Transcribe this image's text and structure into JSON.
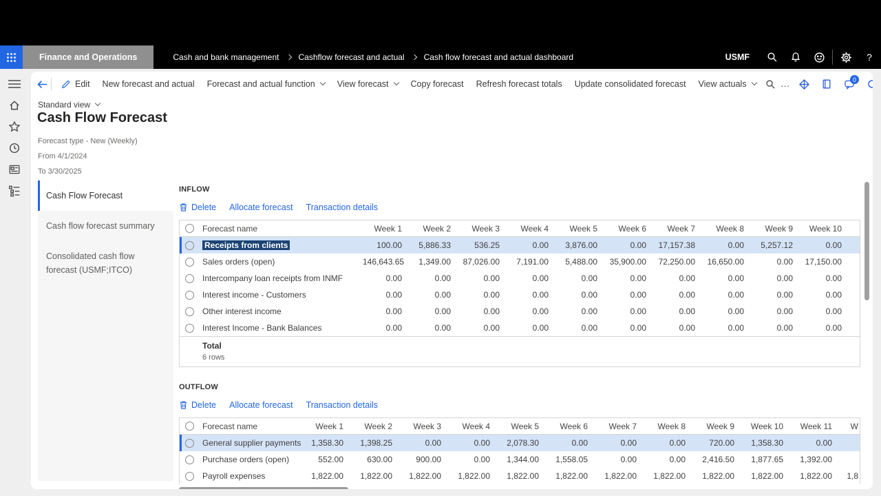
{
  "colors": {
    "accent": "#2266E3",
    "row_highlight": "#d5e3f7",
    "selection_text_bg": "#1b4474",
    "header_bg": "#000000"
  },
  "app_bar": {
    "app_name": "Finance and Operations",
    "breadcrumb": [
      "Cash and bank management",
      "Cashflow forecast and actual",
      "Cash flow forecast and actual dashboard"
    ],
    "company": "USMF",
    "help_label": "?"
  },
  "action_pane": {
    "edit_label": "Edit",
    "items": [
      {
        "label": "New forecast and actual",
        "dropdown": false
      },
      {
        "label": "Forecast and actual function",
        "dropdown": true
      },
      {
        "label": "View forecast",
        "dropdown": true
      },
      {
        "label": "Copy forecast",
        "dropdown": false
      },
      {
        "label": "Refresh forecast totals",
        "dropdown": false
      },
      {
        "label": "Update consolidated forecast",
        "dropdown": false
      },
      {
        "label": "View actuals",
        "dropdown": true
      }
    ],
    "more_label": "...",
    "chat_badge": "0"
  },
  "page": {
    "view_label": "Standard view",
    "title": "Cash Flow Forecast",
    "meta": [
      "Forecast type - New (Weekly)",
      "From 4/1/2024",
      "To 3/30/2025"
    ]
  },
  "sidebar_tabs": [
    {
      "label": "Cash Flow Forecast",
      "selected": true
    },
    {
      "label": "Cash flow forecast summary",
      "selected": false
    },
    {
      "label": "Consolidated cash flow forecast (USMF;ITCO)",
      "selected": false
    }
  ],
  "sections": {
    "inflow": {
      "title": "INFLOW",
      "actions": [
        "Delete",
        "Allocate forecast",
        "Transaction details"
      ],
      "columns": [
        "Forecast name",
        "Week 1",
        "Week 2",
        "Week 3",
        "Week 4",
        "Week 5",
        "Week 6",
        "Week 7",
        "Week 8",
        "Week 9",
        "Week 10"
      ],
      "rows": [
        {
          "name": "Receipts from clients",
          "selected": true,
          "values": [
            "100.00",
            "5,886.33",
            "536.25",
            "0.00",
            "3,876.00",
            "0.00",
            "17,157.38",
            "0.00",
            "5,257.12",
            "0.00"
          ]
        },
        {
          "name": "Sales orders (open)",
          "selected": false,
          "values": [
            "146,643.65",
            "1,349.00",
            "87,026.00",
            "7,191.00",
            "5,488.00",
            "35,900.00",
            "72,250.00",
            "16,650.00",
            "0.00",
            "17,150.00"
          ]
        },
        {
          "name": "Intercompany loan receipts from INMF",
          "selected": false,
          "values": [
            "0.00",
            "0.00",
            "0.00",
            "0.00",
            "0.00",
            "0.00",
            "0.00",
            "0.00",
            "0.00",
            "0.00"
          ]
        },
        {
          "name": "Interest income - Customers",
          "selected": false,
          "values": [
            "0.00",
            "0.00",
            "0.00",
            "0.00",
            "0.00",
            "0.00",
            "0.00",
            "0.00",
            "0.00",
            "0.00"
          ]
        },
        {
          "name": "Other interest income",
          "selected": false,
          "values": [
            "0.00",
            "0.00",
            "0.00",
            "0.00",
            "0.00",
            "0.00",
            "0.00",
            "0.00",
            "0.00",
            "0.00"
          ]
        },
        {
          "name": "Interest Income - Bank Balances",
          "selected": false,
          "values": [
            "0.00",
            "0.00",
            "0.00",
            "0.00",
            "0.00",
            "0.00",
            "0.00",
            "0.00",
            "0.00",
            "0.00"
          ]
        }
      ],
      "footer": {
        "total_label": "Total",
        "row_count_label": "6 rows"
      }
    },
    "outflow": {
      "title": "OUTFLOW",
      "actions": [
        "Delete",
        "Allocate forecast",
        "Transaction details"
      ],
      "columns": [
        "Forecast name",
        "Week 1",
        "Week 2",
        "Week 3",
        "Week 4",
        "Week 5",
        "Week 6",
        "Week 7",
        "Week 8",
        "Week 9",
        "Week 10",
        "Week 11",
        "W"
      ],
      "rows": [
        {
          "name": "General supplier payments",
          "selected": true,
          "values": [
            "1,358.30",
            "1,398.25",
            "0.00",
            "0.00",
            "2,078.30",
            "0.00",
            "0.00",
            "0.00",
            "720.00",
            "1,358.30",
            "0.00",
            ""
          ]
        },
        {
          "name": "Purchase orders (open)",
          "selected": false,
          "values": [
            "552.00",
            "630.00",
            "900.00",
            "0.00",
            "1,344.00",
            "1,558.05",
            "0.00",
            "0.00",
            "2,416.50",
            "1,877.65",
            "1,392.00",
            ""
          ]
        },
        {
          "name": "Payroll expenses",
          "selected": false,
          "values": [
            "1,822.00",
            "1,822.00",
            "1,822.00",
            "1,822.00",
            "1,822.00",
            "1,822.00",
            "1,822.00",
            "1,822.00",
            "1,822.00",
            "1,822.00",
            "1,822.00",
            "1,8"
          ]
        }
      ]
    }
  }
}
